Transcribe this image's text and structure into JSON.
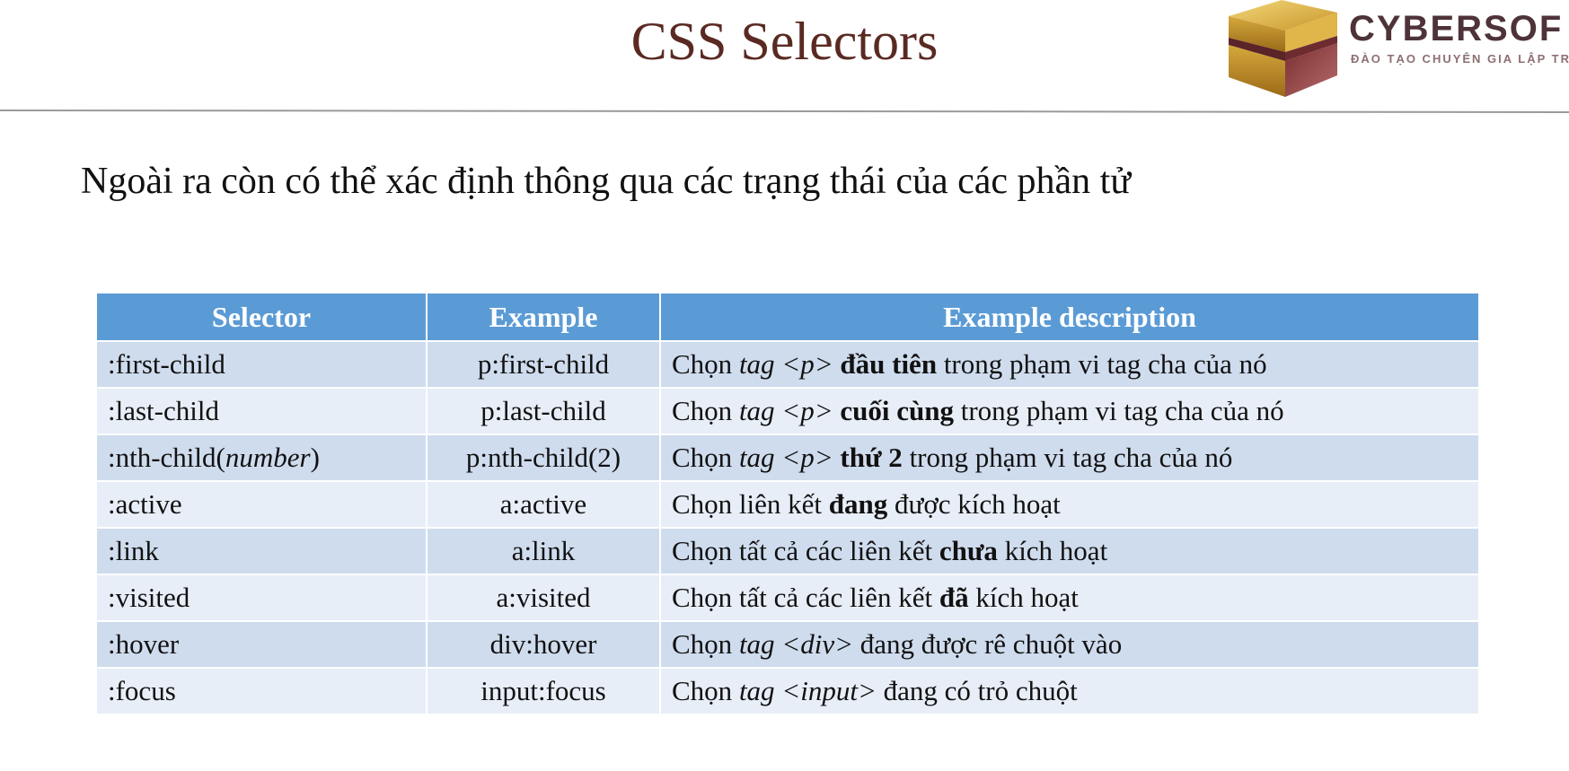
{
  "slide": {
    "title": "CSS Selectors",
    "subtitle": "Ngoài ra còn có thể xác định thông qua các trạng thái của các phần tử"
  },
  "logo": {
    "name": "CYBERSOF",
    "tagline": "ĐÀO TẠO CHUYÊN GIA LẬP TRÌ"
  },
  "colors": {
    "title": "#5a2a22",
    "header_bg": "#5b9bd5",
    "row_odd": "#cfdcee",
    "row_even": "#e8eef7"
  },
  "table": {
    "headers": [
      "Selector",
      "Example",
      "Example description"
    ],
    "rows": [
      {
        "selector": [
          {
            "t": ":first-child"
          }
        ],
        "example": "p:first-child",
        "description": [
          {
            "t": "Chọn "
          },
          {
            "t": "tag <p>",
            "i": true
          },
          {
            "t": " "
          },
          {
            "t": "đầu tiên",
            "b": true
          },
          {
            "t": " trong phạm vi tag cha của nó"
          }
        ]
      },
      {
        "selector": [
          {
            "t": ":last-child"
          }
        ],
        "example": "p:last-child",
        "description": [
          {
            "t": "Chọn "
          },
          {
            "t": "tag <p>",
            "i": true
          },
          {
            "t": " "
          },
          {
            "t": "cuối cùng",
            "b": true
          },
          {
            "t": " trong phạm vi tag cha của nó"
          }
        ]
      },
      {
        "selector": [
          {
            "t": ":nth-child("
          },
          {
            "t": "number",
            "i": true
          },
          {
            "t": ")"
          }
        ],
        "example": "p:nth-child(2)",
        "description": [
          {
            "t": "Chọn "
          },
          {
            "t": "tag <p>",
            "i": true
          },
          {
            "t": " "
          },
          {
            "t": "thứ 2",
            "b": true
          },
          {
            "t": " trong phạm vi tag cha của nó"
          }
        ]
      },
      {
        "selector": [
          {
            "t": ":active"
          }
        ],
        "example": "a:active",
        "description": [
          {
            "t": "Chọn liên kết "
          },
          {
            "t": "đang",
            "b": true
          },
          {
            "t": " được kích hoạt"
          }
        ]
      },
      {
        "selector": [
          {
            "t": ":link"
          }
        ],
        "example": "a:link",
        "description": [
          {
            "t": "Chọn tất cả các liên kết "
          },
          {
            "t": "chưa",
            "b": true
          },
          {
            "t": " kích hoạt"
          }
        ]
      },
      {
        "selector": [
          {
            "t": ":visited"
          }
        ],
        "example": "a:visited",
        "description": [
          {
            "t": "Chọn tất cả các liên kết "
          },
          {
            "t": "đã",
            "b": true
          },
          {
            "t": " kích hoạt"
          }
        ]
      },
      {
        "selector": [
          {
            "t": ":hover"
          }
        ],
        "example": "div:hover",
        "description": [
          {
            "t": "Chọn "
          },
          {
            "t": "tag <div>",
            "i": true
          },
          {
            "t": " đang được rê chuột vào"
          }
        ]
      },
      {
        "selector": [
          {
            "t": ":focus"
          }
        ],
        "example": "input:focus",
        "description": [
          {
            "t": "Chọn "
          },
          {
            "t": "tag <input>",
            "i": true
          },
          {
            "t": " đang có trỏ chuột"
          }
        ]
      }
    ]
  }
}
